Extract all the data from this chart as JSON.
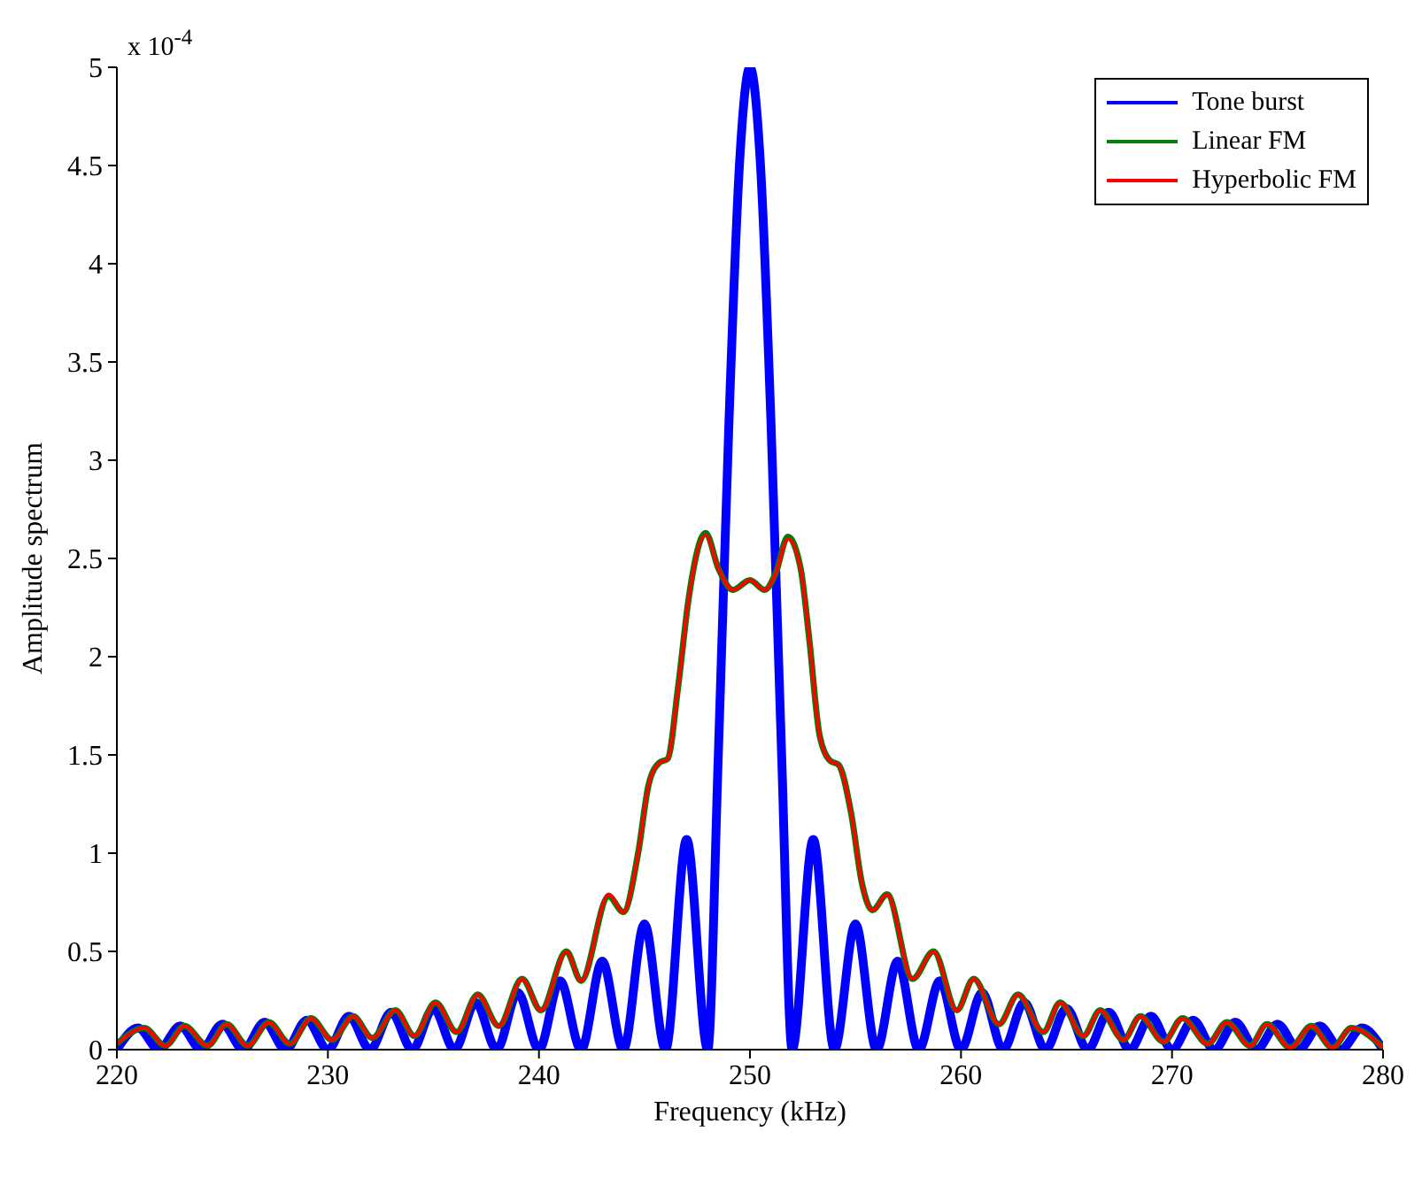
{
  "chart_data": {
    "type": "line",
    "xlabel": "Frequency (kHz)",
    "ylabel": "Amplitude spectrum",
    "annotations": [
      "x 10$^{-4}$"
    ],
    "xlim": [
      220,
      280
    ],
    "xticks": [
      220,
      230,
      240,
      250,
      260,
      270,
      280
    ],
    "ylim": [
      0,
      5
    ],
    "yticks": [
      0,
      0.5,
      1,
      1.5,
      2,
      2.5,
      3,
      3.5,
      4,
      4.5,
      5
    ],
    "grid": false,
    "legend": "top right",
    "marker": "none",
    "line_style": "solid",
    "series": [
      {
        "name": "Tone burst",
        "color": "#0000ff",
        "x": [
          220,
          221,
          222,
          223,
          224,
          225,
          226,
          227,
          228,
          229,
          230,
          231,
          232,
          233,
          234,
          235,
          236,
          237,
          238,
          239,
          240,
          241,
          242,
          243,
          244,
          245,
          246,
          247,
          248,
          248.5,
          249,
          249.5,
          250,
          250.5,
          251,
          251.5,
          252,
          253,
          254,
          255,
          256,
          257,
          258,
          259,
          260,
          261,
          262,
          263,
          264,
          265,
          266,
          267,
          268,
          269,
          270,
          271,
          272,
          273,
          274,
          275,
          276,
          277,
          278,
          279,
          280
        ],
        "values": [
          0,
          0.11,
          0,
          0.12,
          0,
          0.13,
          0,
          0.14,
          0,
          0.15,
          0,
          0.17,
          0,
          0.19,
          0,
          0.21,
          0,
          0.24,
          0,
          0.29,
          0,
          0.35,
          0,
          0.45,
          0,
          0.64,
          0,
          1.07,
          0,
          1.5,
          3.18,
          4.5,
          5,
          4.5,
          3.18,
          1.5,
          0,
          1.07,
          0,
          0.64,
          0,
          0.45,
          0,
          0.35,
          0,
          0.29,
          0,
          0.24,
          0,
          0.21,
          0,
          0.19,
          0,
          0.17,
          0,
          0.15,
          0,
          0.14,
          0,
          0.13,
          0,
          0.12,
          0,
          0.11,
          0
        ]
      },
      {
        "name": "Linear FM",
        "color": "#008000",
        "x": [
          220,
          221.3,
          222.3,
          223.2,
          224.3,
          225.2,
          226.2,
          227.2,
          228.2,
          229.2,
          230.2,
          231.2,
          232.1,
          233.2,
          234.1,
          235.1,
          236.1,
          237.1,
          238.1,
          239.2,
          240.1,
          241.3,
          242,
          243.3,
          244,
          244.7,
          245.2,
          245.7,
          246.1,
          246.6,
          247.1,
          247.9,
          248.5,
          249.2,
          250,
          250.7,
          251.2,
          251.8,
          252.4,
          252.8,
          253.3,
          253.8,
          254.2,
          254.8,
          255.3,
          255.8,
          256.5,
          257.7,
          258.7,
          259.8,
          260.6,
          261.8,
          262.7,
          263.9,
          264.7,
          265.8,
          266.6,
          267.7,
          268.5,
          269.6,
          270.5,
          271.7,
          272.6,
          273.7,
          274.5,
          275.6,
          276.6,
          277.6,
          278.5,
          280
        ],
        "values": [
          0.03,
          0.11,
          0.02,
          0.12,
          0.02,
          0.13,
          0.02,
          0.14,
          0.03,
          0.16,
          0.05,
          0.17,
          0.06,
          0.2,
          0.07,
          0.24,
          0.09,
          0.28,
          0.12,
          0.36,
          0.2,
          0.5,
          0.35,
          0.78,
          0.7,
          1,
          1.35,
          1.46,
          1.48,
          1.85,
          2.3,
          2.63,
          2.45,
          2.34,
          2.39,
          2.34,
          2.42,
          2.61,
          2.45,
          2.1,
          1.6,
          1.47,
          1.45,
          1.2,
          0.85,
          0.71,
          0.79,
          0.36,
          0.5,
          0.2,
          0.36,
          0.13,
          0.28,
          0.09,
          0.24,
          0.07,
          0.2,
          0.05,
          0.17,
          0.04,
          0.16,
          0.03,
          0.14,
          0.02,
          0.13,
          0.01,
          0.12,
          0.01,
          0.11,
          0.01
        ]
      },
      {
        "name": "Hyperbolic FM",
        "color": "#ff0000",
        "x": [
          220,
          221.3,
          222.3,
          223.2,
          224.3,
          225.2,
          226.2,
          227.2,
          228.2,
          229.2,
          230.2,
          231.2,
          232.1,
          233.2,
          234.1,
          235.1,
          236.1,
          237.1,
          238.1,
          239.2,
          240.1,
          241.3,
          242,
          243.3,
          244,
          244.7,
          245.2,
          245.7,
          246.1,
          246.6,
          247.1,
          247.9,
          248.5,
          249.2,
          250,
          250.7,
          251.2,
          251.8,
          252.4,
          252.8,
          253.3,
          253.8,
          254.2,
          254.8,
          255.3,
          255.8,
          256.5,
          257.7,
          258.7,
          259.8,
          260.6,
          261.8,
          262.7,
          263.9,
          264.7,
          265.8,
          266.6,
          267.7,
          268.5,
          269.6,
          270.5,
          271.7,
          272.6,
          273.7,
          274.5,
          275.6,
          276.6,
          277.6,
          278.5,
          280
        ],
        "values": [
          0.03,
          0.11,
          0.02,
          0.12,
          0.02,
          0.13,
          0.02,
          0.14,
          0.03,
          0.16,
          0.05,
          0.17,
          0.06,
          0.2,
          0.07,
          0.24,
          0.09,
          0.28,
          0.12,
          0.36,
          0.2,
          0.5,
          0.35,
          0.79,
          0.7,
          1,
          1.35,
          1.46,
          1.48,
          1.85,
          2.3,
          2.62,
          2.45,
          2.34,
          2.39,
          2.34,
          2.42,
          2.6,
          2.45,
          2.1,
          1.6,
          1.47,
          1.45,
          1.2,
          0.85,
          0.71,
          0.79,
          0.36,
          0.5,
          0.2,
          0.36,
          0.13,
          0.28,
          0.09,
          0.24,
          0.07,
          0.2,
          0.05,
          0.17,
          0.04,
          0.16,
          0.03,
          0.14,
          0.02,
          0.13,
          0.01,
          0.12,
          0.01,
          0.11,
          0.01
        ]
      }
    ]
  }
}
